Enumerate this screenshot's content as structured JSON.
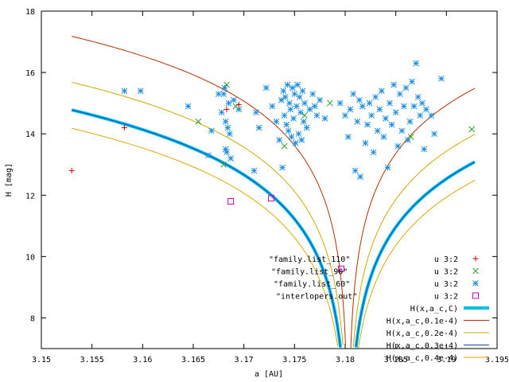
{
  "chart_data": {
    "type": "scatter",
    "xlabel": "a [AU]",
    "ylabel": "H [mag]",
    "xlim": [
      3.15,
      3.195
    ],
    "ylim": [
      7,
      18
    ],
    "xticks": [
      "3.15",
      "3.155",
      "3.16",
      "3.165",
      "3.17",
      "3.175",
      "3.18",
      "3.185",
      "3.19",
      "3.195"
    ],
    "yticks": [
      "8",
      "10",
      "12",
      "14",
      "16",
      "18"
    ],
    "grid": false,
    "legend_position": "bottom-right",
    "series": [
      {
        "name": "\"family.list_110\"",
        "legend_suffix": "u 3:2",
        "marker": "plus",
        "color": "#cc0000",
        "points": [
          [
            3.153,
            12.8
          ],
          [
            3.1582,
            14.2
          ],
          [
            3.1683,
            14.8
          ],
          [
            3.1695,
            14.95
          ]
        ]
      },
      {
        "name": "\"family.list_90\"",
        "legend_suffix": "u 3:2",
        "marker": "cross",
        "color": "#2ca02c",
        "points": [
          [
            3.1655,
            14.4
          ],
          [
            3.168,
            13.0
          ],
          [
            3.1683,
            15.6
          ],
          [
            3.1692,
            14.9
          ],
          [
            3.174,
            13.6
          ],
          [
            3.176,
            14.6
          ],
          [
            3.1785,
            15.0
          ],
          [
            3.1865,
            13.9
          ],
          [
            3.1925,
            14.15
          ]
        ]
      },
      {
        "name": "\"family.list_60\"",
        "legend_suffix": "u 3:2",
        "marker": "star",
        "color": "#1f8fe0",
        "points": [
          [
            3.1582,
            15.4
          ],
          [
            3.1598,
            15.4
          ],
          [
            3.1645,
            14.9
          ],
          [
            3.1665,
            13.3
          ],
          [
            3.1668,
            14.1
          ],
          [
            3.1675,
            15.3
          ],
          [
            3.1678,
            14.7
          ],
          [
            3.168,
            15.3
          ],
          [
            3.1681,
            15.5
          ],
          [
            3.1682,
            14.4
          ],
          [
            3.1682,
            13.5
          ],
          [
            3.1683,
            13.4
          ],
          [
            3.1684,
            14.2
          ],
          [
            3.1685,
            15.0
          ],
          [
            3.1686,
            14.0
          ],
          [
            3.1687,
            13.2
          ],
          [
            3.169,
            15.1
          ],
          [
            3.1695,
            14.8
          ],
          [
            3.171,
            12.8
          ],
          [
            3.1712,
            14.7
          ],
          [
            3.1715,
            14.2
          ],
          [
            3.1722,
            15.5
          ],
          [
            3.1728,
            14.9
          ],
          [
            3.1732,
            14.4
          ],
          [
            3.1735,
            13.8
          ],
          [
            3.1737,
            15.1
          ],
          [
            3.1738,
            12.9
          ],
          [
            3.1739,
            15.4
          ],
          [
            3.174,
            14.6
          ],
          [
            3.1741,
            15.2
          ],
          [
            3.1742,
            14.3
          ],
          [
            3.1743,
            15.6
          ],
          [
            3.1744,
            14.1
          ],
          [
            3.1745,
            15.0
          ],
          [
            3.1746,
            14.8
          ],
          [
            3.1747,
            13.9
          ],
          [
            3.1748,
            15.5
          ],
          [
            3.1749,
            14.5
          ],
          [
            3.175,
            15.3
          ],
          [
            3.1751,
            13.7
          ],
          [
            3.1752,
            14.9
          ],
          [
            3.1753,
            15.6
          ],
          [
            3.1754,
            14.0
          ],
          [
            3.1755,
            15.2
          ],
          [
            3.1756,
            14.7
          ],
          [
            3.1757,
            13.8
          ],
          [
            3.1758,
            15.4
          ],
          [
            3.1759,
            14.4
          ],
          [
            3.176,
            15.0
          ],
          [
            3.1762,
            14.2
          ],
          [
            3.1765,
            14.8
          ],
          [
            3.1768,
            15.3
          ],
          [
            3.177,
            14.9
          ],
          [
            3.1772,
            14.6
          ],
          [
            3.1775,
            15.1
          ],
          [
            3.178,
            14.5
          ],
          [
            3.1795,
            15.0
          ],
          [
            3.18,
            14.6
          ],
          [
            3.1803,
            13.9
          ],
          [
            3.1805,
            14.8
          ],
          [
            3.1808,
            15.3
          ],
          [
            3.181,
            12.8
          ],
          [
            3.1812,
            14.4
          ],
          [
            3.1814,
            15.1
          ],
          [
            3.1815,
            12.6
          ],
          [
            3.1817,
            14.9
          ],
          [
            3.182,
            13.7
          ],
          [
            3.1822,
            14.3
          ],
          [
            3.1824,
            15.0
          ],
          [
            3.1826,
            14.6
          ],
          [
            3.1828,
            13.4
          ],
          [
            3.183,
            15.2
          ],
          [
            3.1832,
            14.1
          ],
          [
            3.1834,
            14.8
          ],
          [
            3.1836,
            15.4
          ],
          [
            3.1838,
            13.9
          ],
          [
            3.184,
            14.5
          ],
          [
            3.1842,
            12.9
          ],
          [
            3.1844,
            15.0
          ],
          [
            3.1846,
            14.3
          ],
          [
            3.1848,
            15.6
          ],
          [
            3.185,
            14.7
          ],
          [
            3.1852,
            13.6
          ],
          [
            3.1854,
            15.3
          ],
          [
            3.1856,
            14.1
          ],
          [
            3.1858,
            14.9
          ],
          [
            3.186,
            15.5
          ],
          [
            3.1862,
            13.8
          ],
          [
            3.1864,
            14.4
          ],
          [
            3.1866,
            15.7
          ],
          [
            3.1868,
            14.9
          ],
          [
            3.187,
            16.3
          ],
          [
            3.1872,
            15.2
          ],
          [
            3.1874,
            14.6
          ],
          [
            3.1876,
            15.0
          ],
          [
            3.1878,
            13.5
          ],
          [
            3.188,
            14.8
          ],
          [
            3.1885,
            14.6
          ],
          [
            3.1888,
            14.0
          ],
          [
            3.1895,
            15.8
          ]
        ]
      },
      {
        "name": "\"interlopers.out\"",
        "legend_suffix": "u 3:2",
        "marker": "box",
        "color": "#cc00cc",
        "points": [
          [
            3.1687,
            11.8
          ],
          [
            3.1727,
            11.9
          ],
          [
            3.1796,
            9.6
          ]
        ]
      }
    ],
    "curves": [
      {
        "name": "H(x,a_c,C)",
        "color": "#00bfe0",
        "width": 4,
        "dy": 0
      },
      {
        "name": "H(x,a_c,0.1e-4)",
        "color": "#b03000",
        "width": 1,
        "dy": 2.4
      },
      {
        "name": "H(x,a_c,0.2e-4)",
        "color": "#ccaa00",
        "width": 1,
        "dy": 0.9
      },
      {
        "name": "H(x,a_c,0.3e-4)",
        "color": "#2040c0",
        "width": 1,
        "dy": 0
      },
      {
        "name": "H(x,a_c,0.4e-4)",
        "color": "#ddaa00",
        "width": 1,
        "dy": -0.6
      }
    ],
    "curve_center": 3.1803,
    "curve_base": 14.78,
    "curve_base_x": 3.153
  }
}
